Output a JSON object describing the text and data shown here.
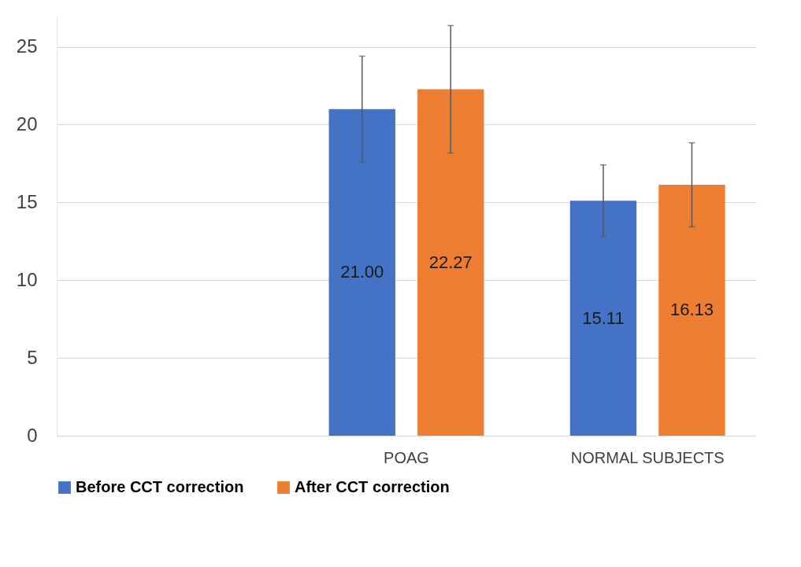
{
  "chart_data": {
    "type": "bar",
    "categories": [
      null,
      "POAG",
      "NORMAL SUBJECTS"
    ],
    "series": [
      {
        "name": "Before CCT correction",
        "color": "#4472c4",
        "values": [
          null,
          21.0,
          15.11
        ],
        "errors": [
          null,
          3.4,
          2.3
        ],
        "value_labels": [
          null,
          "21.00",
          "15.11"
        ]
      },
      {
        "name": "After CCT correction",
        "color": "#ed7d31",
        "values": [
          null,
          22.27,
          16.13
        ],
        "errors": [
          null,
          4.1,
          2.7
        ],
        "value_labels": [
          null,
          "22.27",
          "16.13"
        ]
      }
    ],
    "ylim": [
      0,
      27
    ],
    "yticks": [
      0,
      5,
      10,
      15,
      20,
      25
    ],
    "grid": "y",
    "legend": "bottom"
  }
}
